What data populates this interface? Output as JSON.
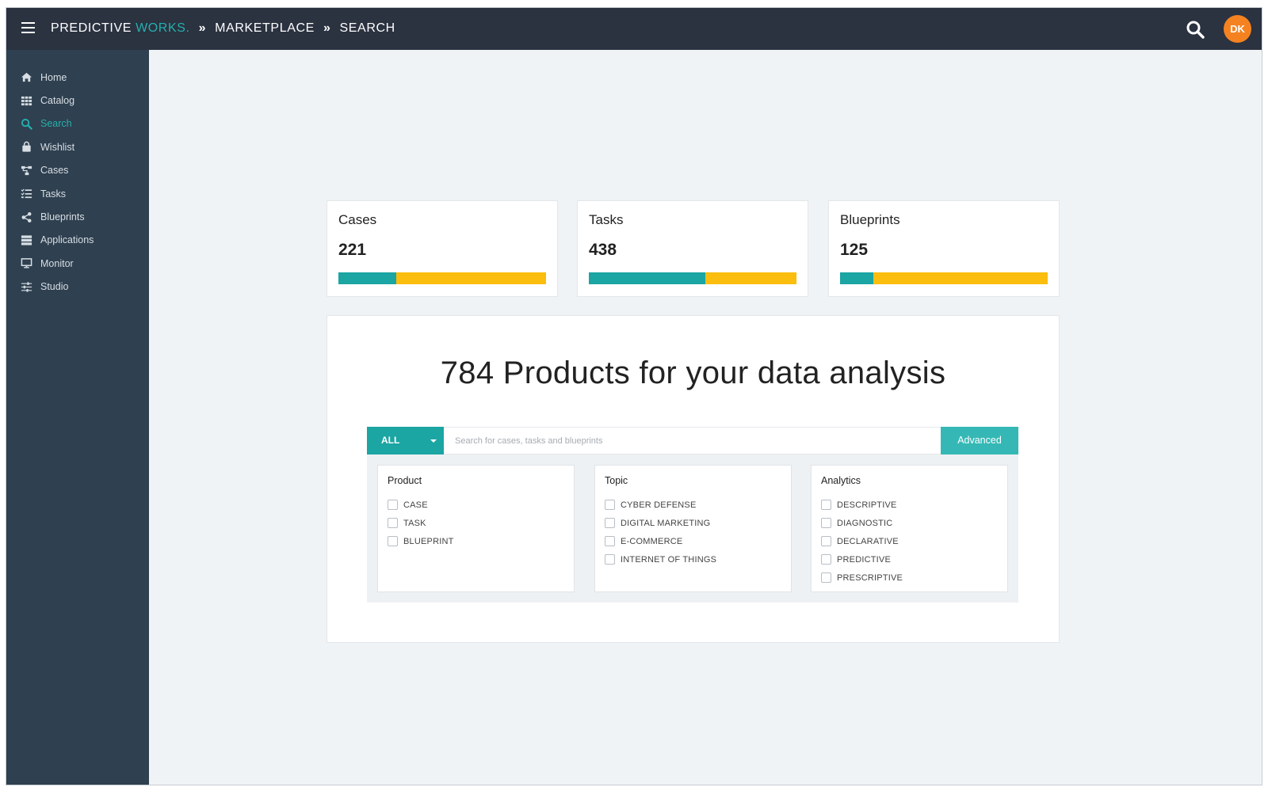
{
  "header": {
    "brand_part1": "PREDICTIVE",
    "brand_part2": "WORKS.",
    "sep": "»",
    "crumb1": "MARKETPLACE",
    "crumb2": "SEARCH",
    "avatar": "DK",
    "icons": {
      "menu": "hamburger-icon",
      "search": "search-icon"
    }
  },
  "sidebar": {
    "items": [
      {
        "label": "Home",
        "icon": "home-icon",
        "active": false
      },
      {
        "label": "Catalog",
        "icon": "grid-icon",
        "active": false
      },
      {
        "label": "Search",
        "icon": "search-icon",
        "active": true
      },
      {
        "label": "Wishlist",
        "icon": "shopping-bag-icon",
        "active": false
      },
      {
        "label": "Cases",
        "icon": "sitemap-icon",
        "active": false
      },
      {
        "label": "Tasks",
        "icon": "tasks-icon",
        "active": false
      },
      {
        "label": "Blueprints",
        "icon": "share-icon",
        "active": false
      },
      {
        "label": "Applications",
        "icon": "server-icon",
        "active": false
      },
      {
        "label": "Monitor",
        "icon": "desktop-icon",
        "active": false
      },
      {
        "label": "Studio",
        "icon": "sliders-icon",
        "active": false
      }
    ]
  },
  "stats": [
    {
      "title": "Cases",
      "count": "221",
      "ratio": 0.28
    },
    {
      "title": "Tasks",
      "count": "438",
      "ratio": 0.56
    },
    {
      "title": "Blueprints",
      "count": "125",
      "ratio": 0.16
    }
  ],
  "colors": {
    "teal": "#1ba5a3",
    "yellow": "#fbbd0e",
    "nav_bg": "#2f4050",
    "topbar_bg": "#2b3240",
    "avatar": "#f58220"
  },
  "search": {
    "headline": "784 Products for your data analysis",
    "scope": "ALL",
    "placeholder": "Search for cases, tasks and blueprints",
    "value": "",
    "advanced": "Advanced"
  },
  "filters": [
    {
      "title": "Product",
      "options": [
        "CASE",
        "TASK",
        "BLUEPRINT"
      ]
    },
    {
      "title": "Topic",
      "options": [
        "CYBER DEFENSE",
        "DIGITAL MARKETING",
        "E-COMMERCE",
        "INTERNET OF THINGS"
      ]
    },
    {
      "title": "Analytics",
      "options": [
        "DESCRIPTIVE",
        "DIAGNOSTIC",
        "DECLARATIVE",
        "PREDICTIVE",
        "PRESCRIPTIVE"
      ]
    }
  ]
}
